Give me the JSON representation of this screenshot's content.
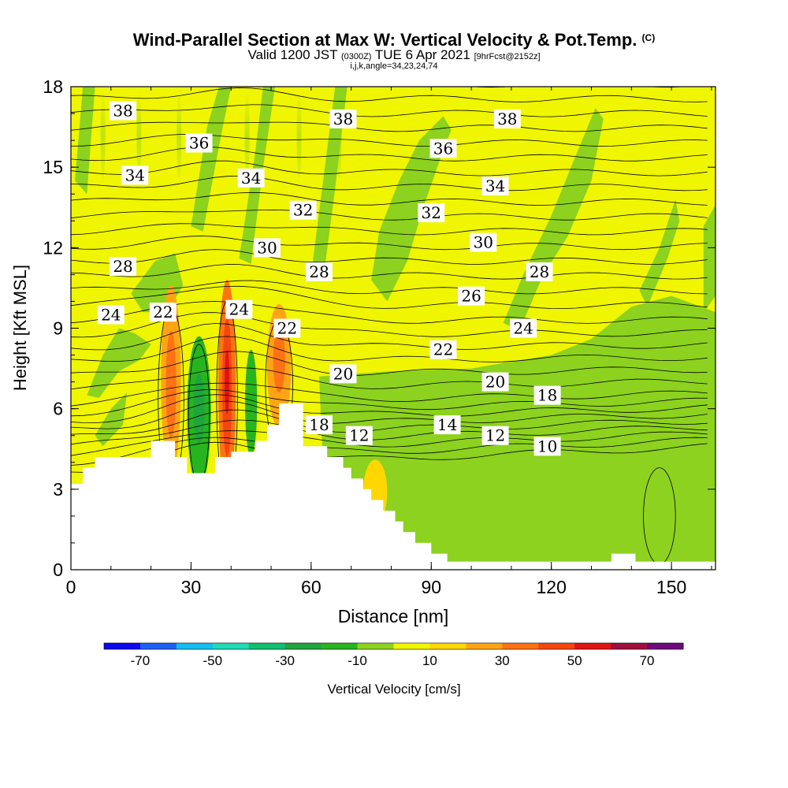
{
  "header": {
    "title_main": "Wind-Parallel Section at Max W: Vertical Velocity & Pot.Temp.",
    "title_mark": "(C)",
    "valid_prefix": "Valid 1200 JST",
    "valid_utc": "(0300Z)",
    "valid_date": "TUE 6 Apr 2021",
    "valid_forecast": "[9hrFcst@2152z]",
    "grid_info": "i,j,k,angle=34,23,24,74"
  },
  "chart_data": {
    "type": "heatmap",
    "xlabel": "Distance [nm]",
    "ylabel": "Height [Kft MSL]",
    "xlim": [
      0,
      161
    ],
    "ylim": [
      0,
      18
    ],
    "x_ticks": [
      0,
      30,
      60,
      90,
      120,
      150
    ],
    "y_ticks": [
      0,
      3,
      6,
      9,
      12,
      15,
      18
    ],
    "grid": false,
    "colorbar": {
      "label": "Vertical Velocity [cm/s]",
      "placement": "bottom",
      "tick_labels": [
        -70,
        -50,
        -30,
        -10,
        10,
        30,
        50,
        70
      ],
      "bounds": [
        -80,
        -70,
        -60,
        -50,
        -40,
        -30,
        -20,
        -10,
        0,
        10,
        20,
        30,
        40,
        50,
        60,
        70,
        80
      ],
      "colors": [
        "#0a0af0",
        "#1e5ff5",
        "#14bef0",
        "#1edcb4",
        "#0fbe6e",
        "#1ea53c",
        "#28b41e",
        "#8cd21e",
        "#f0f500",
        "#ffd700",
        "#ffa514",
        "#ff7314",
        "#f5460f",
        "#e11414",
        "#a00f3c",
        "#6e0a7d"
      ]
    },
    "terrain_kft": {
      "x": [
        0,
        3,
        3,
        6,
        6,
        20,
        20,
        26,
        26,
        29,
        29,
        36,
        36,
        40,
        40,
        46,
        46,
        49,
        49,
        52,
        52,
        58,
        58,
        64,
        64,
        68,
        68,
        70,
        70,
        73,
        73,
        75,
        75,
        78,
        78,
        81,
        81,
        83,
        83,
        86,
        86,
        90,
        90,
        94,
        94,
        135,
        135,
        141,
        141,
        161
      ],
      "y": [
        3.2,
        3.2,
        3.8,
        3.8,
        4.2,
        4.2,
        4.8,
        4.8,
        4.2,
        4.2,
        3.6,
        3.6,
        4.2,
        4.2,
        4.4,
        4.4,
        4.8,
        4.8,
        5.4,
        5.4,
        6.2,
        6.2,
        4.6,
        4.6,
        4.2,
        4.2,
        3.8,
        3.8,
        3.4,
        3.4,
        3.0,
        3.0,
        2.6,
        2.6,
        2.2,
        2.2,
        1.8,
        1.8,
        1.4,
        1.4,
        1.0,
        1.0,
        0.6,
        0.6,
        0.3,
        0.3,
        0.6,
        0.6,
        0.3,
        0.3
      ]
    },
    "theta_contour_labels": [
      {
        "value": 38,
        "x": 13,
        "y": 17.1
      },
      {
        "value": 38,
        "x": 68,
        "y": 16.8
      },
      {
        "value": 38,
        "x": 109,
        "y": 16.8
      },
      {
        "value": 36,
        "x": 32,
        "y": 15.9
      },
      {
        "value": 36,
        "x": 93,
        "y": 15.7
      },
      {
        "value": 34,
        "x": 16,
        "y": 14.7
      },
      {
        "value": 34,
        "x": 45,
        "y": 14.6
      },
      {
        "value": 34,
        "x": 106,
        "y": 14.3
      },
      {
        "value": 32,
        "x": 58,
        "y": 13.4
      },
      {
        "value": 32,
        "x": 90,
        "y": 13.3
      },
      {
        "value": 30,
        "x": 49,
        "y": 12.0
      },
      {
        "value": 30,
        "x": 103,
        "y": 12.2
      },
      {
        "value": 28,
        "x": 13,
        "y": 11.3
      },
      {
        "value": 28,
        "x": 62,
        "y": 11.1
      },
      {
        "value": 28,
        "x": 117,
        "y": 11.1
      },
      {
        "value": 26,
        "x": 100,
        "y": 10.2
      },
      {
        "value": 24,
        "x": 10,
        "y": 9.5
      },
      {
        "value": 24,
        "x": 42,
        "y": 9.7
      },
      {
        "value": 24,
        "x": 113,
        "y": 9.0
      },
      {
        "value": 22,
        "x": 23,
        "y": 9.6
      },
      {
        "value": 22,
        "x": 54,
        "y": 9.0
      },
      {
        "value": 22,
        "x": 93,
        "y": 8.2
      },
      {
        "value": 20,
        "x": 68,
        "y": 7.3
      },
      {
        "value": 20,
        "x": 106,
        "y": 7.0
      },
      {
        "value": 18,
        "x": 62,
        "y": 5.4
      },
      {
        "value": 18,
        "x": 119,
        "y": 6.5
      },
      {
        "value": 14,
        "x": 94,
        "y": 5.4
      },
      {
        "value": 12,
        "x": 72,
        "y": 5.0
      },
      {
        "value": 12,
        "x": 106,
        "y": 5.0
      },
      {
        "value": 10,
        "x": 119,
        "y": 4.6
      }
    ],
    "w_field_cms": [
      {
        "x": 25,
        "y": 7.1,
        "rx": 2.5,
        "ry": 3.5,
        "value": 28
      },
      {
        "x": 25,
        "y": 6.9,
        "rx": 1.3,
        "ry": 2.0,
        "value": 38
      },
      {
        "x": 39,
        "y": 6.8,
        "rx": 2.2,
        "ry": 4.0,
        "value": 30
      },
      {
        "x": 39,
        "y": 6.8,
        "rx": 1.2,
        "ry": 2.6,
        "value": 45
      },
      {
        "x": 39,
        "y": 7.0,
        "rx": 0.6,
        "ry": 1.2,
        "value": 55
      },
      {
        "x": 52,
        "y": 7.6,
        "rx": 3.0,
        "ry": 2.3,
        "value": 25
      },
      {
        "x": 52,
        "y": 7.8,
        "rx": 1.5,
        "ry": 1.2,
        "value": 35
      },
      {
        "x": 32,
        "y": 5.9,
        "rx": 3.0,
        "ry": 2.8,
        "value": -15
      },
      {
        "x": 32,
        "y": 6.0,
        "rx": 1.4,
        "ry": 1.3,
        "value": -25
      },
      {
        "x": 45,
        "y": 6.2,
        "rx": 1.5,
        "ry": 2.0,
        "value": -12
      },
      {
        "x": 76,
        "y": 2.9,
        "rx": 3.0,
        "ry": 1.2,
        "value": 15
      }
    ]
  }
}
